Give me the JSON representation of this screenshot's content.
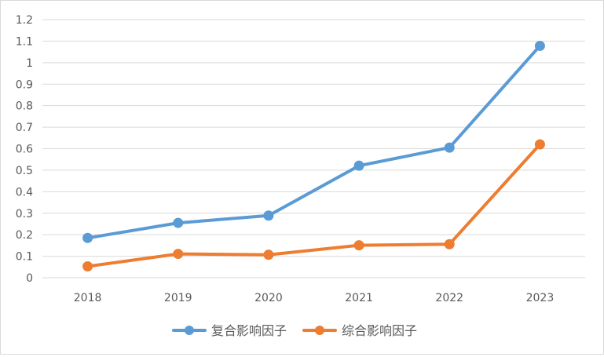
{
  "chart_data": {
    "type": "line",
    "categories": [
      "2018",
      "2019",
      "2020",
      "2021",
      "2022",
      "2023"
    ],
    "series": [
      {
        "name": "复合影响因子",
        "color": "#5B9BD5",
        "values": [
          0.185,
          0.255,
          0.289,
          0.521,
          0.605,
          1.078
        ]
      },
      {
        "name": "综合影响因子",
        "color": "#ED7D31",
        "values": [
          0.053,
          0.111,
          0.107,
          0.151,
          0.156,
          0.62
        ]
      }
    ],
    "ylim": [
      0,
      1.2
    ],
    "yticks": [
      "0",
      "0.1",
      "0.2",
      "0.3",
      "0.4",
      "0.5",
      "0.6",
      "0.7",
      "0.8",
      "0.9",
      "1",
      "1.1",
      "1.2"
    ],
    "grid": true,
    "legend_position": "bottom",
    "title": "",
    "xlabel": "",
    "ylabel": ""
  }
}
